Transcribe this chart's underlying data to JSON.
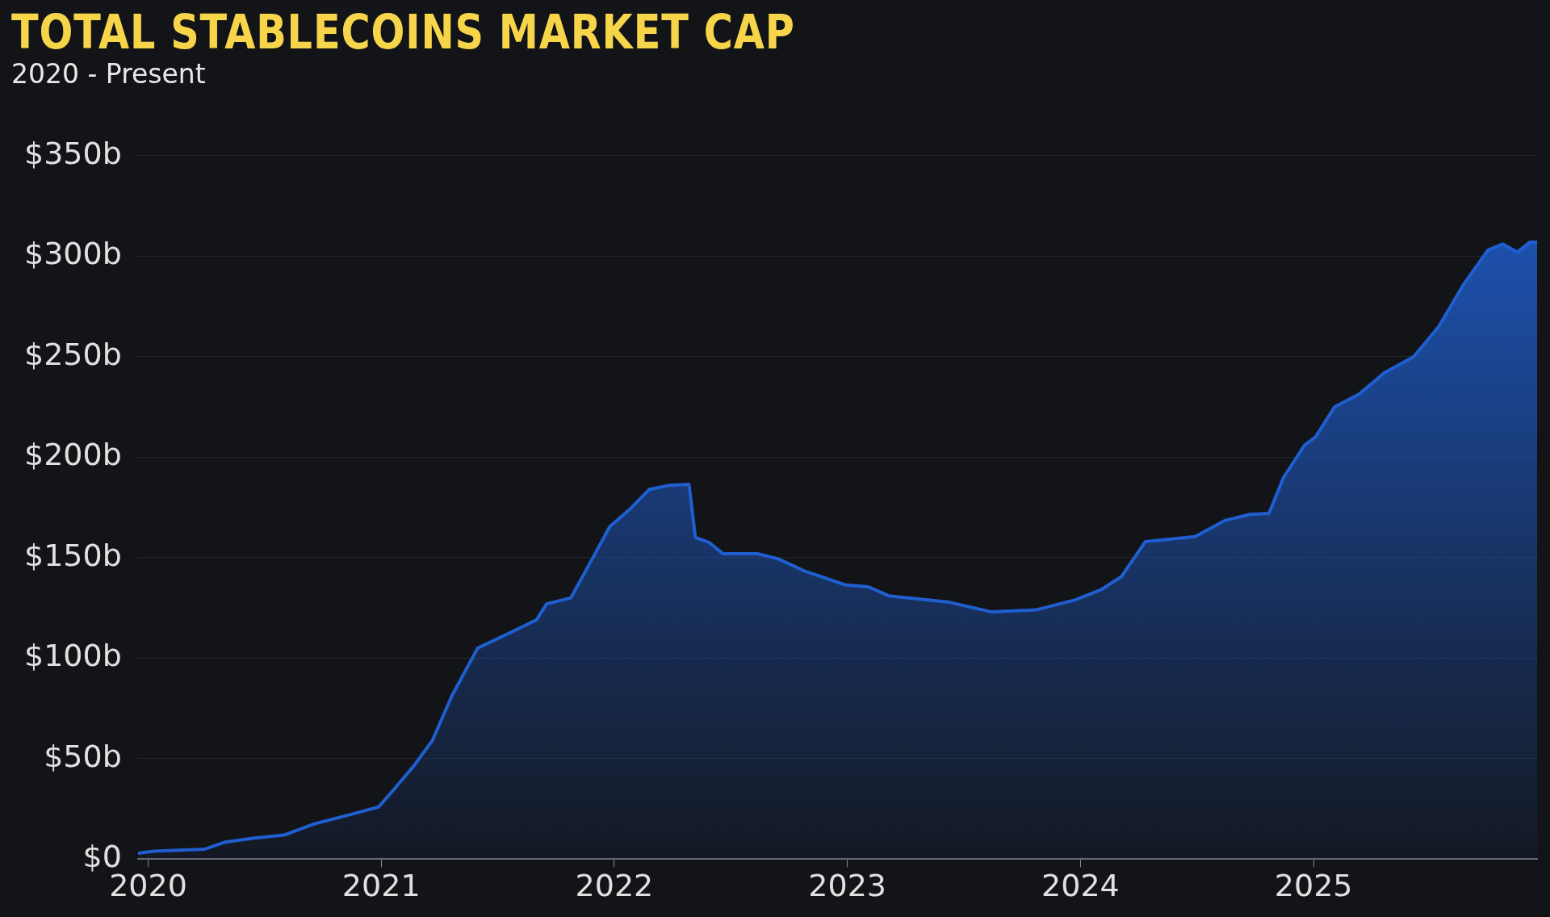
{
  "chart_data": {
    "type": "area",
    "title": "TOTAL STABLECOINS MARKET CAP",
    "subtitle": "2020 - Present",
    "x": [
      "2019-12-16",
      "2020-01-10",
      "2020-03-30",
      "2020-05-01",
      "2020-06-15",
      "2020-08-01",
      "2020-09-17",
      "2020-11-17",
      "2020-12-28",
      "2021-01-19",
      "2021-02-20",
      "2021-03-22",
      "2021-04-22",
      "2021-06-01",
      "2021-07-24",
      "2021-09-01",
      "2021-09-17",
      "2021-10-25",
      "2021-11-25",
      "2021-12-25",
      "2022-01-25",
      "2022-02-25",
      "2022-03-28",
      "2022-04-28",
      "2022-05-08",
      "2022-05-30",
      "2022-06-20",
      "2022-08-13",
      "2022-09-14",
      "2022-10-25",
      "2022-12-28",
      "2023-02-03",
      "2023-03-07",
      "2023-06-07",
      "2023-08-15",
      "2023-10-23",
      "2023-12-24",
      "2024-02-02",
      "2024-03-05",
      "2024-04-12",
      "2024-06-29",
      "2024-08-15",
      "2024-09-23",
      "2024-10-23",
      "2024-11-15",
      "2024-12-18",
      "2025-01-04",
      "2025-02-03",
      "2025-03-14",
      "2025-04-22",
      "2025-06-07",
      "2025-07-16",
      "2025-08-23",
      "2025-10-01",
      "2025-10-24",
      "2025-11-16",
      "2025-12-06",
      "2025-12-17"
    ],
    "series": [
      {
        "color": "#1f5fd1",
        "values": [
          3,
          4,
          5,
          8.5,
          10.5,
          12,
          17.5,
          22.5,
          26,
          34,
          46,
          59,
          81.5,
          105,
          113,
          119,
          127,
          130,
          148,
          165.5,
          174,
          184,
          186,
          186.5,
          160,
          157.5,
          152,
          152,
          149.5,
          143.5,
          136.5,
          135.5,
          131,
          128,
          123,
          124,
          129,
          134,
          140.5,
          158,
          160.5,
          168.5,
          171.5,
          172,
          190,
          206,
          210,
          225,
          231.5,
          242,
          250,
          265,
          285.5,
          303,
          306,
          302,
          307,
          307
        ]
      }
    ],
    "xlim": [
      "2019-12-16",
      "2025-12-17"
    ],
    "xticks": [
      "2020",
      "2021",
      "2022",
      "2023",
      "2024",
      "2025"
    ],
    "ylim": [
      0,
      350
    ],
    "yticks": [
      {
        "value": 0,
        "label": "$0"
      },
      {
        "value": 50,
        "label": "$50b"
      },
      {
        "value": 100,
        "label": "$100b"
      },
      {
        "value": 150,
        "label": "$150b"
      },
      {
        "value": 200,
        "label": "$200b"
      },
      {
        "value": 250,
        "label": "$250b"
      },
      {
        "value": 300,
        "label": "$300b"
      },
      {
        "value": 350,
        "label": "$350b"
      }
    ],
    "grid": "y",
    "legend": false,
    "marker": "none",
    "line_style": "solid"
  }
}
